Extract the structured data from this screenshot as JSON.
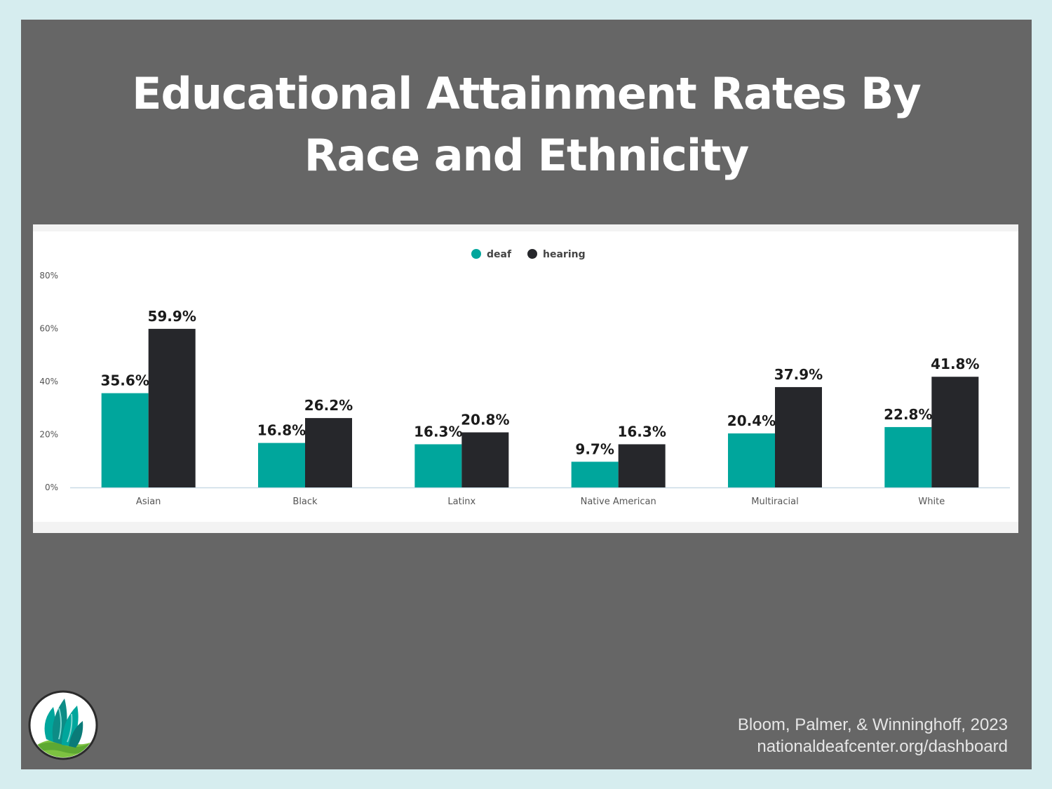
{
  "slide": {
    "title_line1": "Educational Attainment Rates By",
    "title_line2": "Race and Ethnicity",
    "citation": "Bloom, Palmer, & Winninghoff, 2023",
    "url": "nationaldeafcenter.org/dashboard",
    "logo_icon": "national-deaf-center-leaf-logo-icon",
    "colors": {
      "background": "#666666",
      "border": "#d6edef",
      "deaf": "#00a69c",
      "hearing": "#26272b"
    }
  },
  "chart_data": {
    "type": "bar",
    "categories": [
      "Asian",
      "Black",
      "Latinx",
      "Native American",
      "Multiracial",
      "White"
    ],
    "series": [
      {
        "name": "deaf",
        "values": [
          35.6,
          16.8,
          16.3,
          9.7,
          20.4,
          22.8
        ],
        "labels": [
          "35.6%",
          "16.8%",
          "16.3%",
          "9.7%",
          "20.4%",
          "22.8%"
        ],
        "color": "#00a69c"
      },
      {
        "name": "hearing",
        "values": [
          59.9,
          26.2,
          20.8,
          16.3,
          37.9,
          41.8
        ],
        "labels": [
          "59.9%",
          "26.2%",
          "20.8%",
          "16.3%",
          "37.9%",
          "41.8%"
        ],
        "color": "#26272b"
      }
    ],
    "yticks": [
      "0%",
      "20%",
      "40%",
      "60%",
      "80%"
    ],
    "ytick_values": [
      0,
      20,
      40,
      60,
      80
    ],
    "ylim": [
      0,
      80
    ],
    "legend_position": "top-center",
    "grid": false
  }
}
